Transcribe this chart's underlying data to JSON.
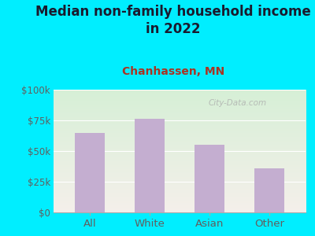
{
  "title": "Median non-family household income\nin 2022",
  "subtitle": "Chanhassen, MN",
  "categories": [
    "All",
    "White",
    "Asian",
    "Other"
  ],
  "values": [
    65000,
    76000,
    55000,
    36000
  ],
  "bar_color": "#c4aed0",
  "background_outer": "#00eeff",
  "background_inner_top": "#d8efd8",
  "background_inner_bottom": "#f5f0ee",
  "title_color": "#1a1a2e",
  "subtitle_color": "#aa3322",
  "tick_color": "#606060",
  "ylabel_ticks": [
    "$0",
    "$25k",
    "$50k",
    "$75k",
    "$100k"
  ],
  "ytick_values": [
    0,
    25000,
    50000,
    75000,
    100000
  ],
  "ylim": [
    0,
    100000
  ],
  "watermark": "City-Data.com",
  "title_fontsize": 12,
  "subtitle_fontsize": 10,
  "tick_fontsize": 8.5,
  "xlabel_fontsize": 9.5
}
